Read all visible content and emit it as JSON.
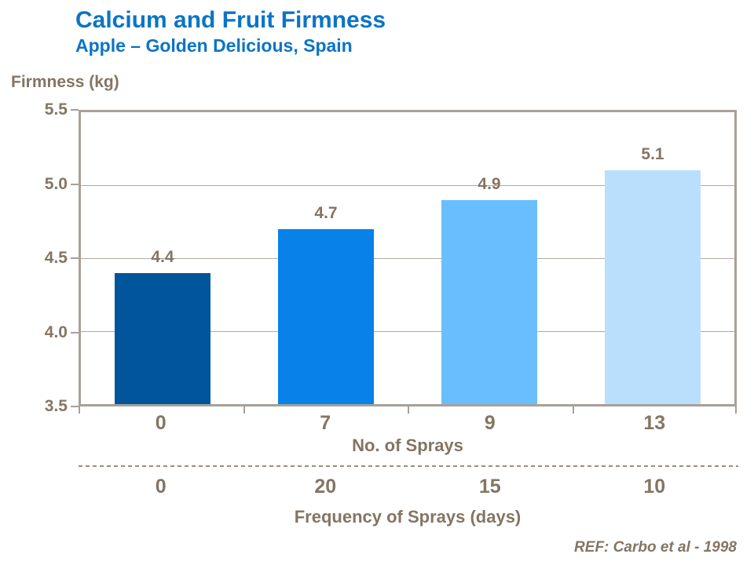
{
  "header": {
    "title": "Calcium and Fruit Firmness",
    "subtitle": "Apple – Golden Delicious, Spain"
  },
  "chart_data": {
    "type": "bar",
    "title": "Calcium and Fruit Firmness",
    "subtitle": "Apple – Golden Delicious, Spain",
    "ylabel": "Firmness (kg)",
    "ylim": [
      3.5,
      5.5
    ],
    "ytick_labels": [
      "5.5",
      "5.0",
      "4.5",
      "4.0",
      "3.5"
    ],
    "grid": true,
    "legend": false,
    "categories": [
      "0",
      "7",
      "9",
      "13"
    ],
    "values": [
      4.4,
      4.7,
      4.9,
      5.1
    ],
    "value_labels": [
      "4.4",
      "4.7",
      "4.9",
      "5.1"
    ],
    "bar_colors": [
      "#01569B",
      "#0882E8",
      "#69BFFD",
      "#BADFFC"
    ],
    "x_axes": [
      {
        "label": "No. of Sprays",
        "values": [
          "0",
          "7",
          "9",
          "13"
        ]
      },
      {
        "label": "Frequency of Sprays (days)",
        "values": [
          "0",
          "20",
          "15",
          "10"
        ]
      }
    ]
  },
  "footer": {
    "ref": "REF: Carbo et al - 1998"
  },
  "colors": {
    "title_blue": "#0B74C6",
    "text_brown": "#847563",
    "axis": "#A8A097",
    "gridline": "#B2AAA1",
    "dashed_divider": "#9C8E7A",
    "background": "#FFFFFF"
  }
}
